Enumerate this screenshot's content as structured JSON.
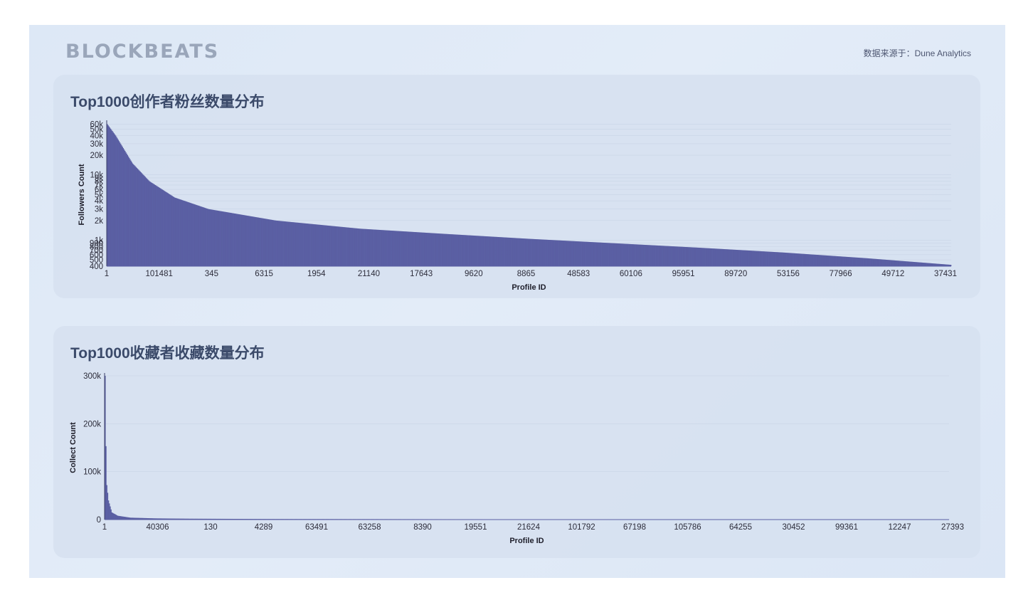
{
  "header": {
    "logo": "BLOCKBEATS",
    "source": "数据来源于：Dune Analytics"
  },
  "colors": {
    "bar": "#5a5fa3",
    "grid": "#c3cfe0"
  },
  "chart_data": [
    {
      "type": "bar",
      "title": "Top1000创作者粉丝数量分布",
      "xlabel": "Profile ID",
      "ylabel": "Followers Count",
      "yscale": "log",
      "ylim": [
        400,
        62000
      ],
      "y_ticks": [
        400,
        500,
        600,
        700,
        800,
        900,
        1000,
        2000,
        3000,
        4000,
        5000,
        6000,
        7000,
        8000,
        9000,
        10000,
        20000,
        30000,
        40000,
        50000,
        60000
      ],
      "y_tick_labels": [
        "400",
        "500",
        "600",
        "700",
        "800",
        "900",
        "1k",
        "2k",
        "3k",
        "4k",
        "5k",
        "6k",
        "7k",
        "8k",
        "9k",
        "10k",
        "20k",
        "30k",
        "40k",
        "50k",
        "60k"
      ],
      "x_tick_labels": [
        "1",
        "101481",
        "345",
        "6315",
        "1954",
        "21140",
        "17643",
        "9620",
        "8865",
        "48583",
        "60106",
        "95951",
        "89720",
        "53156",
        "77966",
        "49712",
        "37431"
      ],
      "n_bars": 1000,
      "curve": [
        [
          0,
          60000
        ],
        [
          0.01,
          40000
        ],
        [
          0.03,
          15000
        ],
        [
          0.05,
          8000
        ],
        [
          0.08,
          4500
        ],
        [
          0.12,
          3000
        ],
        [
          0.2,
          2000
        ],
        [
          0.3,
          1500
        ],
        [
          0.4,
          1250
        ],
        [
          0.5,
          1050
        ],
        [
          0.6,
          900
        ],
        [
          0.7,
          770
        ],
        [
          0.8,
          650
        ],
        [
          0.9,
          530
        ],
        [
          1,
          420
        ]
      ]
    },
    {
      "type": "bar",
      "title": "Top1000收藏者收藏数量分布",
      "xlabel": "Profile ID",
      "ylabel": "Collect Count",
      "yscale": "linear",
      "ylim": [
        0,
        300000
      ],
      "y_ticks": [
        0,
        100000,
        200000,
        300000
      ],
      "y_tick_labels": [
        "0",
        "100k",
        "200k",
        "300k"
      ],
      "x_tick_labels": [
        "1",
        "40306",
        "130",
        "4289",
        "63491",
        "63258",
        "8390",
        "19551",
        "21624",
        "101792",
        "67198",
        "105786",
        "64255",
        "30452",
        "99361",
        "12247",
        "27393"
      ],
      "n_bars": 1000,
      "curve": [
        [
          0,
          300000
        ],
        [
          0.0015,
          80000
        ],
        [
          0.004,
          40000
        ],
        [
          0.008,
          15000
        ],
        [
          0.015,
          8000
        ],
        [
          0.03,
          4000
        ],
        [
          0.06,
          2500
        ],
        [
          0.1,
          1800
        ],
        [
          0.2,
          1200
        ],
        [
          0.4,
          800
        ],
        [
          0.7,
          500
        ],
        [
          1,
          300
        ]
      ]
    }
  ]
}
